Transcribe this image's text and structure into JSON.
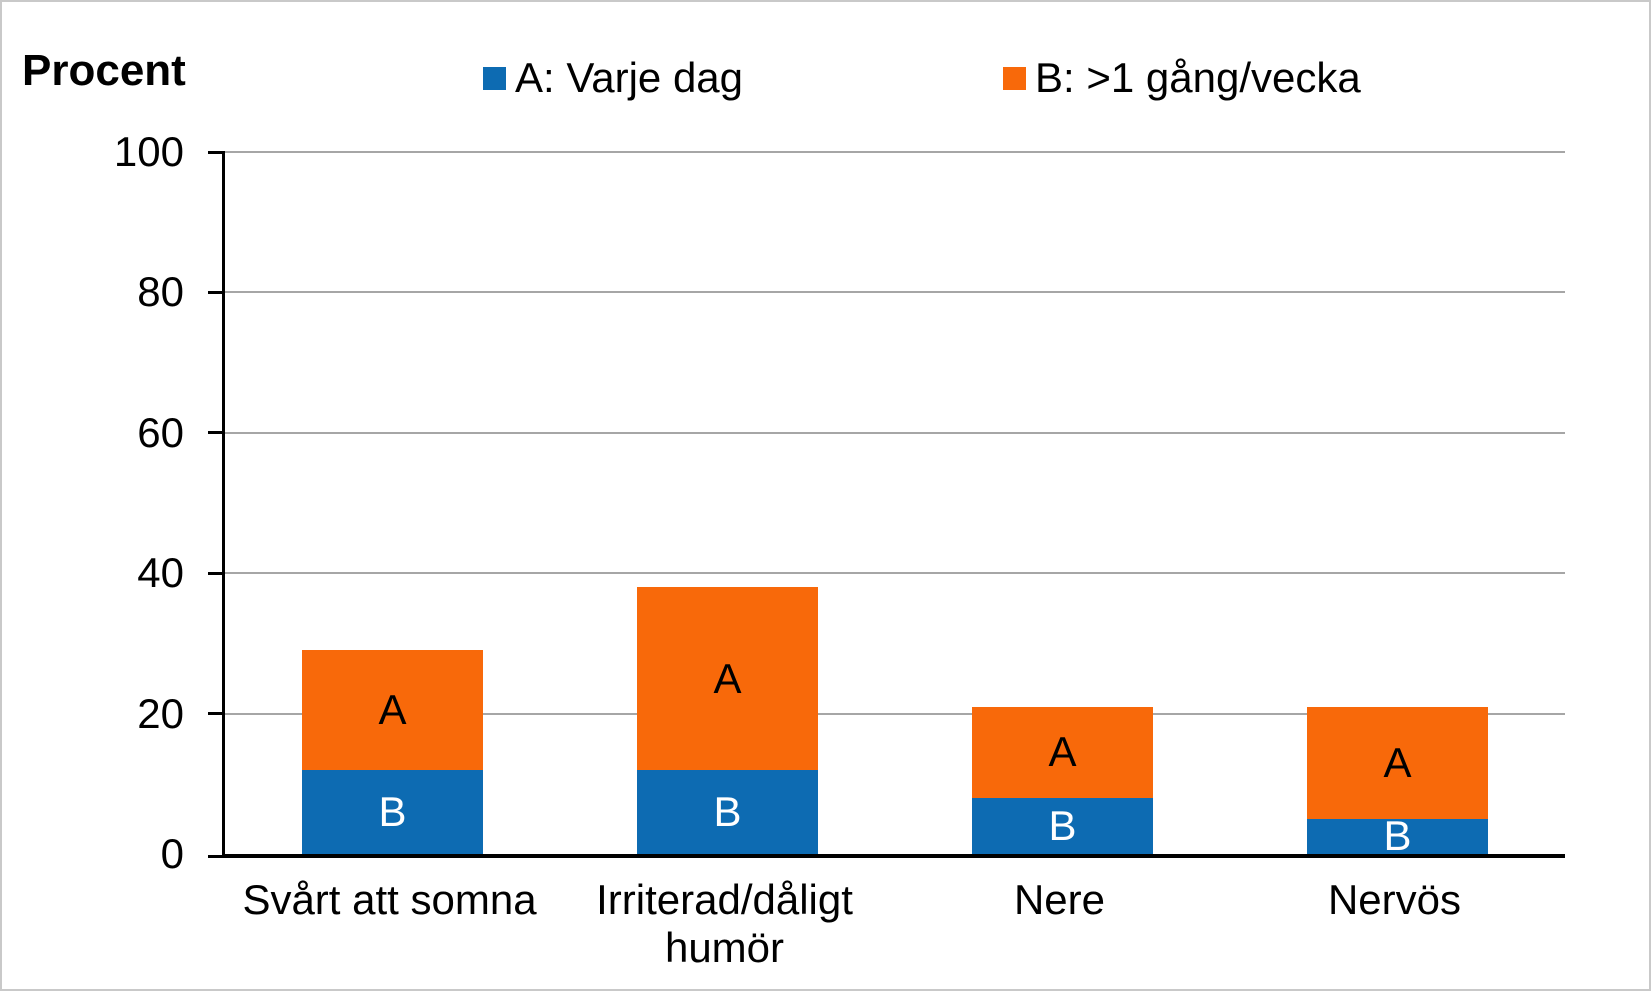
{
  "chart_data": {
    "type": "bar",
    "stacked": true,
    "title": "",
    "ylabel": "Procent",
    "xlabel": "",
    "ylim": [
      0,
      100
    ],
    "yticks": [
      0,
      20,
      40,
      60,
      80,
      100
    ],
    "grid": "horizontal",
    "legend_position": "top",
    "categories": [
      "Svårt att somna",
      "Irriterad/dåligt humör",
      "Nere",
      "Nervös"
    ],
    "series": [
      {
        "name": "A: Varje dag",
        "color": "#0D6BB2",
        "stack": "bottom",
        "segment_letter": "B",
        "segment_letter_color": "#FFFFFF",
        "values": [
          12,
          12,
          8,
          5
        ]
      },
      {
        "name": "B: >1 gång/vecka",
        "color": "#F8690A",
        "stack": "top",
        "segment_letter": "A",
        "segment_letter_color": "#000000",
        "values": [
          17,
          26,
          13,
          16
        ]
      }
    ],
    "stack_totals": [
      29,
      38,
      21,
      21
    ]
  },
  "colors": {
    "background": "#FFFFFF",
    "frame_border": "#C9C9C9",
    "gridline": "#A6A6A6",
    "axis": "#000000",
    "tick": "#000000"
  }
}
